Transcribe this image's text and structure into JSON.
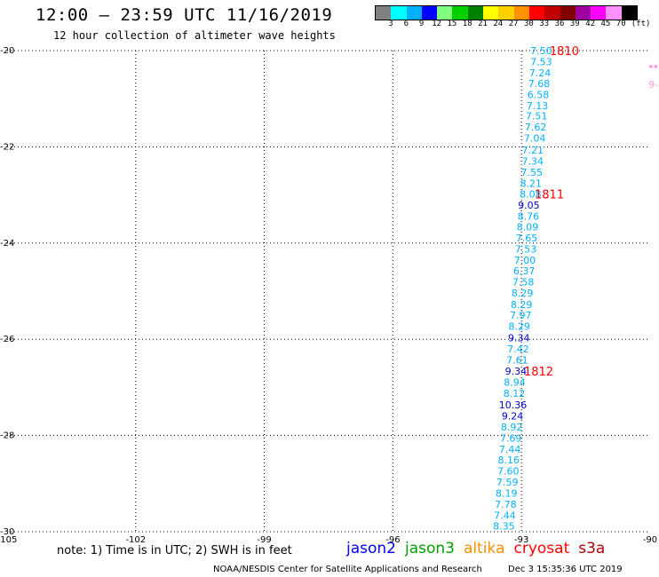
{
  "header": {
    "title": "12:00 – 23:59 UTC 11/16/2019",
    "subtitle": "12 hour collection of altimeter wave heights"
  },
  "legend": {
    "unit": "(ft)",
    "labels": [
      "3",
      "6",
      "9",
      "12",
      "15",
      "18",
      "21",
      "24",
      "27",
      "30",
      "33",
      "36",
      "39",
      "42",
      "45",
      "70"
    ],
    "colors": [
      "#808080",
      "#00ffff",
      "#00b0ff",
      "#0000ff",
      "#80ff80",
      "#00d000",
      "#008000",
      "#ffff00",
      "#ffd000",
      "#ff9000",
      "#ff0000",
      "#c00000",
      "#800000",
      "#a000a0",
      "#ff00ff",
      "#ff90ff",
      "#000000"
    ]
  },
  "chart_data": {
    "type": "scatter",
    "title": "12:00 – 23:59 UTC 11/16/2019",
    "subtitle": "12 hour collection of altimeter wave heights",
    "xlim": [
      -105,
      -90
    ],
    "ylim": [
      -30,
      -20
    ],
    "x_ticks": [
      "-105",
      "-102",
      "-99",
      "-96",
      "-93",
      "-90"
    ],
    "y_ticks": [
      "-20",
      "-22",
      "-24",
      "-26",
      "-28",
      "-30"
    ],
    "grid": true,
    "units": "ft",
    "observations": [
      {
        "lon": -92.54,
        "lat": -20.0,
        "swh": "7.50",
        "color": "#00b0ff"
      },
      {
        "lon": -92.54,
        "lat": -20.23,
        "swh": "7.53",
        "color": "#00b0ff"
      },
      {
        "lon": -92.57,
        "lat": -20.46,
        "swh": "7.24",
        "color": "#00b0ff"
      },
      {
        "lon": -92.59,
        "lat": -20.68,
        "swh": "7.68",
        "color": "#00b0ff"
      },
      {
        "lon": -92.61,
        "lat": -20.91,
        "swh": "6.58",
        "color": "#00b0ff"
      },
      {
        "lon": -92.63,
        "lat": -21.14,
        "swh": "7.13",
        "color": "#00b0ff"
      },
      {
        "lon": -92.65,
        "lat": -21.36,
        "swh": "7.51",
        "color": "#00b0ff"
      },
      {
        "lon": -92.67,
        "lat": -21.59,
        "swh": "7.62",
        "color": "#00b0ff"
      },
      {
        "lon": -92.69,
        "lat": -21.82,
        "swh": "7.04",
        "color": "#00b0ff"
      },
      {
        "lon": -92.74,
        "lat": -22.07,
        "swh": "7.21",
        "color": "#00b0ff"
      },
      {
        "lon": -92.74,
        "lat": -22.3,
        "swh": "7.34",
        "color": "#00b0ff"
      },
      {
        "lon": -92.76,
        "lat": -22.53,
        "swh": "7.55",
        "color": "#00b0ff"
      },
      {
        "lon": -92.78,
        "lat": -22.76,
        "swh": "8.21",
        "color": "#00b0ff"
      },
      {
        "lon": -92.79,
        "lat": -22.98,
        "swh": "8.08",
        "color": "#00b0ff"
      },
      {
        "lon": -92.83,
        "lat": -23.21,
        "swh": "9.05",
        "color": "#0000d0"
      },
      {
        "lon": -92.84,
        "lat": -23.44,
        "swh": "8.76",
        "color": "#00b0ff"
      },
      {
        "lon": -92.86,
        "lat": -23.66,
        "swh": "8.09",
        "color": "#00b0ff"
      },
      {
        "lon": -92.88,
        "lat": -23.89,
        "swh": "7.65",
        "color": "#00b0ff"
      },
      {
        "lon": -92.9,
        "lat": -24.12,
        "swh": "7.53",
        "color": "#00b0ff"
      },
      {
        "lon": -92.92,
        "lat": -24.35,
        "swh": "7.00",
        "color": "#00b0ff"
      },
      {
        "lon": -92.94,
        "lat": -24.58,
        "swh": "6.37",
        "color": "#00b0ff"
      },
      {
        "lon": -92.96,
        "lat": -24.81,
        "swh": "7.58",
        "color": "#00b0ff"
      },
      {
        "lon": -92.98,
        "lat": -25.04,
        "swh": "8.29",
        "color": "#00b0ff"
      },
      {
        "lon": -93.0,
        "lat": -25.28,
        "swh": "8.29",
        "color": "#00b0ff"
      },
      {
        "lon": -93.02,
        "lat": -25.5,
        "swh": "7.97",
        "color": "#00b0ff"
      },
      {
        "lon": -93.05,
        "lat": -25.73,
        "swh": "8.29",
        "color": "#00b0ff"
      },
      {
        "lon": -93.06,
        "lat": -25.97,
        "swh": "9.34",
        "color": "#0000d0"
      },
      {
        "lon": -93.08,
        "lat": -26.2,
        "swh": "7.42",
        "color": "#00b0ff"
      },
      {
        "lon": -93.1,
        "lat": -26.43,
        "swh": "7.61",
        "color": "#00b0ff"
      },
      {
        "lon": -93.13,
        "lat": -26.66,
        "swh": "9.34",
        "color": "#0000d0"
      },
      {
        "lon": -93.16,
        "lat": -26.89,
        "swh": "8.94",
        "color": "#00b0ff"
      },
      {
        "lon": -93.17,
        "lat": -27.12,
        "swh": "8.12",
        "color": "#00b0ff"
      },
      {
        "lon": -93.2,
        "lat": -27.36,
        "swh": "10.36",
        "color": "#0000d0"
      },
      {
        "lon": -93.21,
        "lat": -27.59,
        "swh": "9.24",
        "color": "#0000d0"
      },
      {
        "lon": -93.23,
        "lat": -27.82,
        "swh": "8.92",
        "color": "#00b0ff"
      },
      {
        "lon": -93.25,
        "lat": -28.05,
        "swh": "7.69",
        "color": "#00b0ff"
      },
      {
        "lon": -93.27,
        "lat": -28.28,
        "swh": "7.44",
        "color": "#00b0ff"
      },
      {
        "lon": -93.3,
        "lat": -28.51,
        "swh": "8.16",
        "color": "#00b0ff"
      },
      {
        "lon": -93.31,
        "lat": -28.74,
        "swh": "7.60",
        "color": "#00b0ff"
      },
      {
        "lon": -93.33,
        "lat": -28.97,
        "swh": "7.59",
        "color": "#00b0ff"
      },
      {
        "lon": -93.35,
        "lat": -29.2,
        "swh": "8.19",
        "color": "#00b0ff"
      },
      {
        "lon": -93.37,
        "lat": -29.43,
        "swh": "7.78",
        "color": "#00b0ff"
      },
      {
        "lon": -93.39,
        "lat": -29.66,
        "swh": "7.44",
        "color": "#00b0ff"
      },
      {
        "lon": -93.41,
        "lat": -29.88,
        "swh": "8.35",
        "color": "#00b0ff"
      }
    ],
    "time_labels": [
      {
        "lon": -92.0,
        "lat": -20.0,
        "text": "1810",
        "color": "#ff0000"
      },
      {
        "lon": -92.35,
        "lat": -22.98,
        "text": "1811",
        "color": "#ff0000"
      },
      {
        "lon": -92.6,
        "lat": -26.66,
        "text": "1812",
        "color": "#ff0000"
      }
    ],
    "edge_marks": [
      {
        "lon": -90.04,
        "lat": -20.36,
        "text": "**",
        "color": "#ff66cc"
      },
      {
        "lon": -90.04,
        "lat": -20.7,
        "text": "9-",
        "color": "#ff99dd"
      }
    ]
  },
  "footer": {
    "note": "note: 1) Time is in UTC; 2) SWH is in feet",
    "satellites": [
      {
        "name": "jason2",
        "color": "#0000ff"
      },
      {
        "name": "jason3",
        "color": "#00a000"
      },
      {
        "name": "altika",
        "color": "#ff9000"
      },
      {
        "name": "cryosat",
        "color": "#ff0000"
      },
      {
        "name": "s3a",
        "color": "#b00000"
      }
    ],
    "credit": "NOAA/NESDIS Center for Satellite Applications and Research",
    "date": "Dec  3 15:35:36 UTC 2019"
  }
}
